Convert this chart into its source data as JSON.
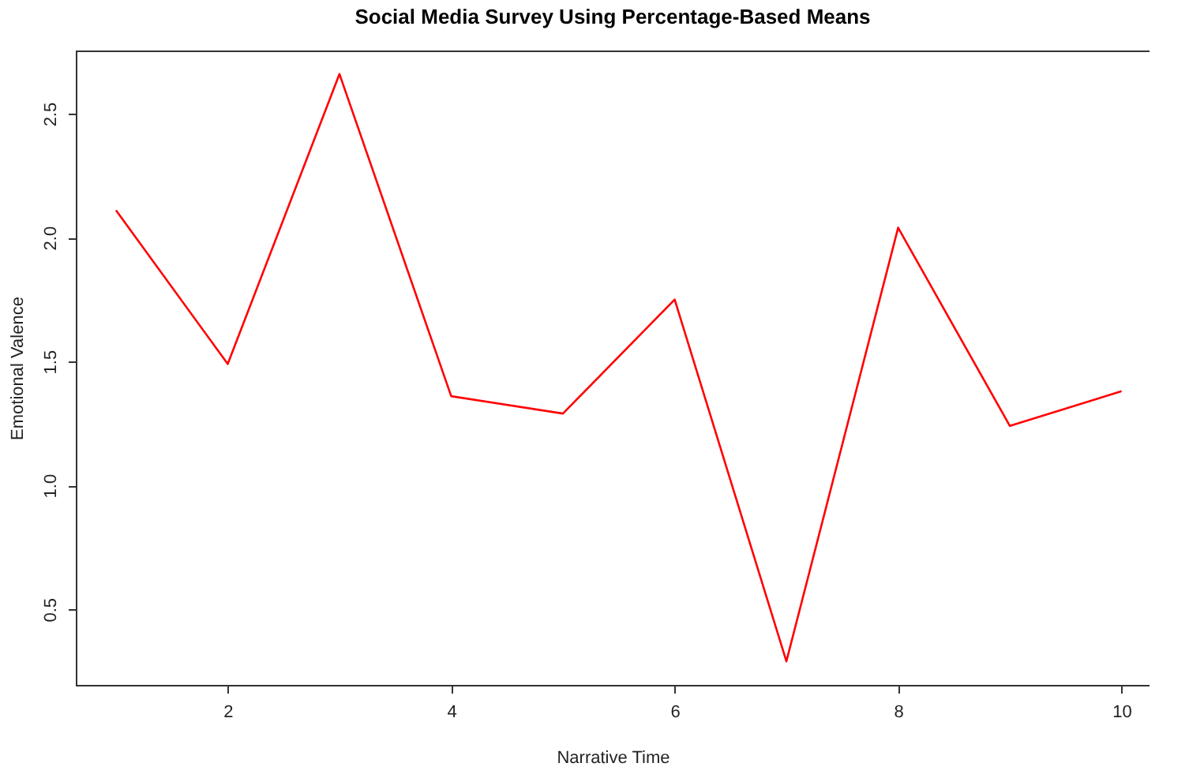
{
  "chart_data": {
    "type": "line",
    "title": "Social Media Survey Using Percentage-Based Means",
    "xlabel": "Narrative Time",
    "ylabel": "Emotional Valence",
    "x": [
      1,
      2,
      3,
      4,
      5,
      6,
      7,
      8,
      9,
      10
    ],
    "series": [
      {
        "color": "#ff0000",
        "values": [
          2.11,
          1.49,
          2.66,
          1.36,
          1.29,
          1.75,
          0.29,
          2.04,
          1.24,
          1.38
        ]
      }
    ],
    "xlim": [
      0.64,
      10.25
    ],
    "ylim": [
      0.195,
      2.755
    ],
    "xticks": [
      2,
      4,
      6,
      8,
      10
    ],
    "yticks": [
      0.5,
      {
        "value": 1,
        "label": "1.0"
      },
      1.5,
      {
        "value": 2,
        "label": "2.0"
      },
      2.5
    ],
    "grid": false,
    "legend": false,
    "marker": "none",
    "line_style": "solid"
  }
}
